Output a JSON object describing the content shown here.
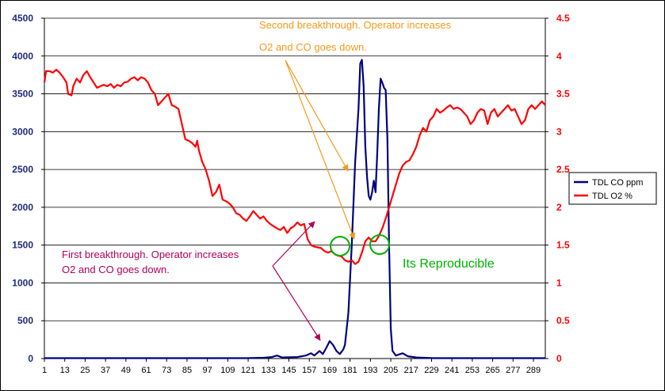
{
  "chart_data": {
    "type": "line",
    "title": "",
    "xlabel": "",
    "ylabel": "",
    "x_ticks": [
      1,
      13,
      25,
      37,
      49,
      61,
      73,
      85,
      97,
      109,
      121,
      133,
      145,
      157,
      169,
      181,
      193,
      205,
      217,
      229,
      241,
      253,
      265,
      277,
      289
    ],
    "y_left": {
      "ticks": [
        0,
        500,
        1000,
        1500,
        2000,
        2500,
        3000,
        3500,
        4000,
        4500
      ],
      "range": [
        0,
        4500
      ],
      "color": "#1f2a7a"
    },
    "y_right": {
      "ticks": [
        "0",
        "0.5",
        "1",
        "1.5",
        "2",
        "2.5",
        "3",
        "3.5",
        "4",
        "4.5"
      ],
      "range": [
        0,
        4.5
      ],
      "color": "#ff0000"
    },
    "grid": true,
    "legend_position": "right",
    "series": [
      {
        "name": "TDL CO ppm",
        "axis": "left",
        "color": "#00007f",
        "points": [
          [
            1,
            5
          ],
          [
            120,
            5
          ],
          [
            130,
            10
          ],
          [
            135,
            20
          ],
          [
            138,
            40
          ],
          [
            141,
            15
          ],
          [
            150,
            20
          ],
          [
            155,
            40
          ],
          [
            158,
            70
          ],
          [
            160,
            40
          ],
          [
            163,
            100
          ],
          [
            165,
            60
          ],
          [
            167,
            140
          ],
          [
            169,
            230
          ],
          [
            171,
            180
          ],
          [
            173,
            100
          ],
          [
            175,
            60
          ],
          [
            177,
            120
          ],
          [
            178,
            180
          ],
          [
            180,
            600
          ],
          [
            182,
            1500
          ],
          [
            184,
            2600
          ],
          [
            186,
            3300
          ],
          [
            187,
            3900
          ],
          [
            188,
            3950
          ],
          [
            189,
            3600
          ],
          [
            190,
            2800
          ],
          [
            191,
            2400
          ],
          [
            192,
            2150
          ],
          [
            193,
            2100
          ],
          [
            194,
            2200
          ],
          [
            195,
            2350
          ],
          [
            196,
            2200
          ],
          [
            197,
            2700
          ],
          [
            198,
            3300
          ],
          [
            199,
            3700
          ],
          [
            200,
            3650
          ],
          [
            201,
            3580
          ],
          [
            202,
            3550
          ],
          [
            203,
            2900
          ],
          [
            204,
            1500
          ],
          [
            205,
            400
          ],
          [
            206,
            100
          ],
          [
            208,
            40
          ],
          [
            212,
            70
          ],
          [
            215,
            30
          ],
          [
            220,
            15
          ],
          [
            230,
            5
          ],
          [
            296,
            5
          ]
        ]
      },
      {
        "name": "TDL O2 %",
        "axis": "right",
        "color": "#ff0000",
        "points": [
          [
            1,
            3.65
          ],
          [
            2,
            3.8
          ],
          [
            4,
            3.8
          ],
          [
            6,
            3.78
          ],
          [
            8,
            3.82
          ],
          [
            10,
            3.78
          ],
          [
            12,
            3.72
          ],
          [
            14,
            3.65
          ],
          [
            15,
            3.5
          ],
          [
            17,
            3.48
          ],
          [
            18,
            3.6
          ],
          [
            20,
            3.7
          ],
          [
            22,
            3.65
          ],
          [
            24,
            3.75
          ],
          [
            26,
            3.8
          ],
          [
            28,
            3.72
          ],
          [
            30,
            3.65
          ],
          [
            32,
            3.58
          ],
          [
            34,
            3.6
          ],
          [
            36,
            3.62
          ],
          [
            38,
            3.6
          ],
          [
            40,
            3.63
          ],
          [
            42,
            3.58
          ],
          [
            44,
            3.62
          ],
          [
            46,
            3.6
          ],
          [
            48,
            3.65
          ],
          [
            50,
            3.66
          ],
          [
            52,
            3.7
          ],
          [
            54,
            3.72
          ],
          [
            56,
            3.68
          ],
          [
            58,
            3.72
          ],
          [
            60,
            3.7
          ],
          [
            62,
            3.65
          ],
          [
            64,
            3.55
          ],
          [
            66,
            3.5
          ],
          [
            68,
            3.35
          ],
          [
            70,
            3.4
          ],
          [
            72,
            3.45
          ],
          [
            74,
            3.5
          ],
          [
            76,
            3.35
          ],
          [
            78,
            3.33
          ],
          [
            80,
            3.3
          ],
          [
            82,
            3.1
          ],
          [
            84,
            2.9
          ],
          [
            86,
            2.88
          ],
          [
            88,
            2.85
          ],
          [
            90,
            2.8
          ],
          [
            91,
            2.88
          ],
          [
            92,
            2.75
          ],
          [
            94,
            2.6
          ],
          [
            96,
            2.5
          ],
          [
            98,
            2.35
          ],
          [
            100,
            2.15
          ],
          [
            102,
            2.2
          ],
          [
            104,
            2.3
          ],
          [
            106,
            2.1
          ],
          [
            108,
            2.08
          ],
          [
            110,
            2.05
          ],
          [
            112,
            2.0
          ],
          [
            114,
            1.92
          ],
          [
            116,
            1.9
          ],
          [
            118,
            1.85
          ],
          [
            120,
            1.82
          ],
          [
            122,
            1.88
          ],
          [
            124,
            1.95
          ],
          [
            126,
            1.9
          ],
          [
            128,
            1.85
          ],
          [
            130,
            1.88
          ],
          [
            132,
            1.82
          ],
          [
            134,
            1.78
          ],
          [
            136,
            1.75
          ],
          [
            138,
            1.72
          ],
          [
            140,
            1.7
          ],
          [
            142,
            1.74
          ],
          [
            144,
            1.66
          ],
          [
            146,
            1.72
          ],
          [
            148,
            1.75
          ],
          [
            150,
            1.8
          ],
          [
            152,
            1.76
          ],
          [
            154,
            1.78
          ],
          [
            156,
            1.58
          ],
          [
            158,
            1.5
          ],
          [
            160,
            1.48
          ],
          [
            162,
            1.47
          ],
          [
            164,
            1.46
          ],
          [
            166,
            1.42
          ],
          [
            168,
            1.4
          ],
          [
            170,
            1.42
          ],
          [
            172,
            1.38
          ],
          [
            174,
            1.36
          ],
          [
            176,
            1.35
          ],
          [
            178,
            1.3
          ],
          [
            180,
            1.28
          ],
          [
            182,
            1.3
          ],
          [
            184,
            1.25
          ],
          [
            186,
            1.28
          ],
          [
            188,
            1.4
          ],
          [
            190,
            1.55
          ],
          [
            192,
            1.6
          ],
          [
            194,
            1.55
          ],
          [
            196,
            1.55
          ],
          [
            198,
            1.62
          ],
          [
            200,
            1.72
          ],
          [
            202,
            1.85
          ],
          [
            204,
            2.0
          ],
          [
            206,
            2.15
          ],
          [
            208,
            2.3
          ],
          [
            210,
            2.45
          ],
          [
            212,
            2.55
          ],
          [
            214,
            2.6
          ],
          [
            216,
            2.62
          ],
          [
            218,
            2.7
          ],
          [
            220,
            2.8
          ],
          [
            222,
            2.95
          ],
          [
            224,
            3.05
          ],
          [
            226,
            3.0
          ],
          [
            228,
            3.15
          ],
          [
            230,
            3.2
          ],
          [
            232,
            3.3
          ],
          [
            234,
            3.25
          ],
          [
            236,
            3.28
          ],
          [
            238,
            3.32
          ],
          [
            240,
            3.35
          ],
          [
            242,
            3.3
          ],
          [
            244,
            3.32
          ],
          [
            246,
            3.3
          ],
          [
            248,
            3.25
          ],
          [
            250,
            3.2
          ],
          [
            252,
            3.1
          ],
          [
            254,
            3.15
          ],
          [
            256,
            3.25
          ],
          [
            258,
            3.3
          ],
          [
            260,
            3.28
          ],
          [
            262,
            3.1
          ],
          [
            264,
            3.25
          ],
          [
            266,
            3.3
          ],
          [
            268,
            3.2
          ],
          [
            270,
            3.25
          ],
          [
            272,
            3.3
          ],
          [
            274,
            3.35
          ],
          [
            276,
            3.28
          ],
          [
            278,
            3.3
          ],
          [
            280,
            3.2
          ],
          [
            282,
            3.1
          ],
          [
            284,
            3.15
          ],
          [
            286,
            3.3
          ],
          [
            288,
            3.35
          ],
          [
            290,
            3.3
          ],
          [
            292,
            3.35
          ],
          [
            294,
            3.4
          ],
          [
            296,
            3.35
          ]
        ]
      }
    ],
    "annotations": [
      {
        "lines": [
          "Second breakthrough. Operator increases",
          "O2  and CO goes down."
        ],
        "color": "#f49a1a"
      },
      {
        "lines": [
          "First breakthrough. Operator increases",
          "O2  and CO goes down."
        ],
        "color": "#b0005a"
      },
      {
        "lines": [
          "Its Reproducible"
        ],
        "color": "#00b000"
      }
    ],
    "legend": [
      {
        "label": "TDL CO ppm",
        "color": "#00007f"
      },
      {
        "label": "TDL O2 %",
        "color": "#ff0000"
      }
    ]
  }
}
